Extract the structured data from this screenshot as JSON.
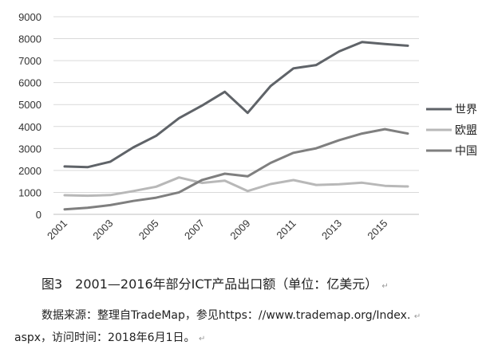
{
  "chart_data": {
    "type": "line",
    "title": "",
    "xlabel": "",
    "ylabel": "",
    "x": [
      2001,
      2002,
      2003,
      2004,
      2005,
      2006,
      2007,
      2008,
      2009,
      2010,
      2011,
      2012,
      2013,
      2014,
      2015,
      2016
    ],
    "x_tick_labels": [
      "2001",
      "2003",
      "2005",
      "2007",
      "2009",
      "2011",
      "2013",
      "2015"
    ],
    "ylim": [
      0,
      9000
    ],
    "y_ticks": [
      0,
      1000,
      2000,
      3000,
      4000,
      5000,
      6000,
      7000,
      8000,
      9000
    ],
    "grid": "horizontal",
    "legend_position": "right",
    "series": [
      {
        "name": "世界",
        "color": "#5f6368",
        "values": [
          2180,
          2150,
          2400,
          3050,
          3580,
          4380,
          4950,
          5580,
          4620,
          5840,
          6650,
          6800,
          7420,
          7850,
          7760,
          7680
        ]
      },
      {
        "name": "欧盟",
        "color": "#b8b8b8",
        "values": [
          870,
          850,
          880,
          1060,
          1260,
          1680,
          1430,
          1530,
          1060,
          1380,
          1560,
          1340,
          1370,
          1440,
          1300,
          1270
        ]
      },
      {
        "name": "中国",
        "color": "#7f7f7f",
        "values": [
          230,
          300,
          420,
          610,
          760,
          1000,
          1560,
          1850,
          1730,
          2340,
          2800,
          3010,
          3380,
          3680,
          3880,
          3680
        ]
      }
    ]
  },
  "caption": {
    "text": "图3　2001—2016年部分ICT产品出口额（单位：亿美元）",
    "mark": "↵"
  },
  "source": {
    "line1": "数据来源：整理自TradeMap，参见https：//www.trademap.org/Index.",
    "line2": "aspx，访问时间：2018年6月1日。",
    "mark": "↵"
  }
}
